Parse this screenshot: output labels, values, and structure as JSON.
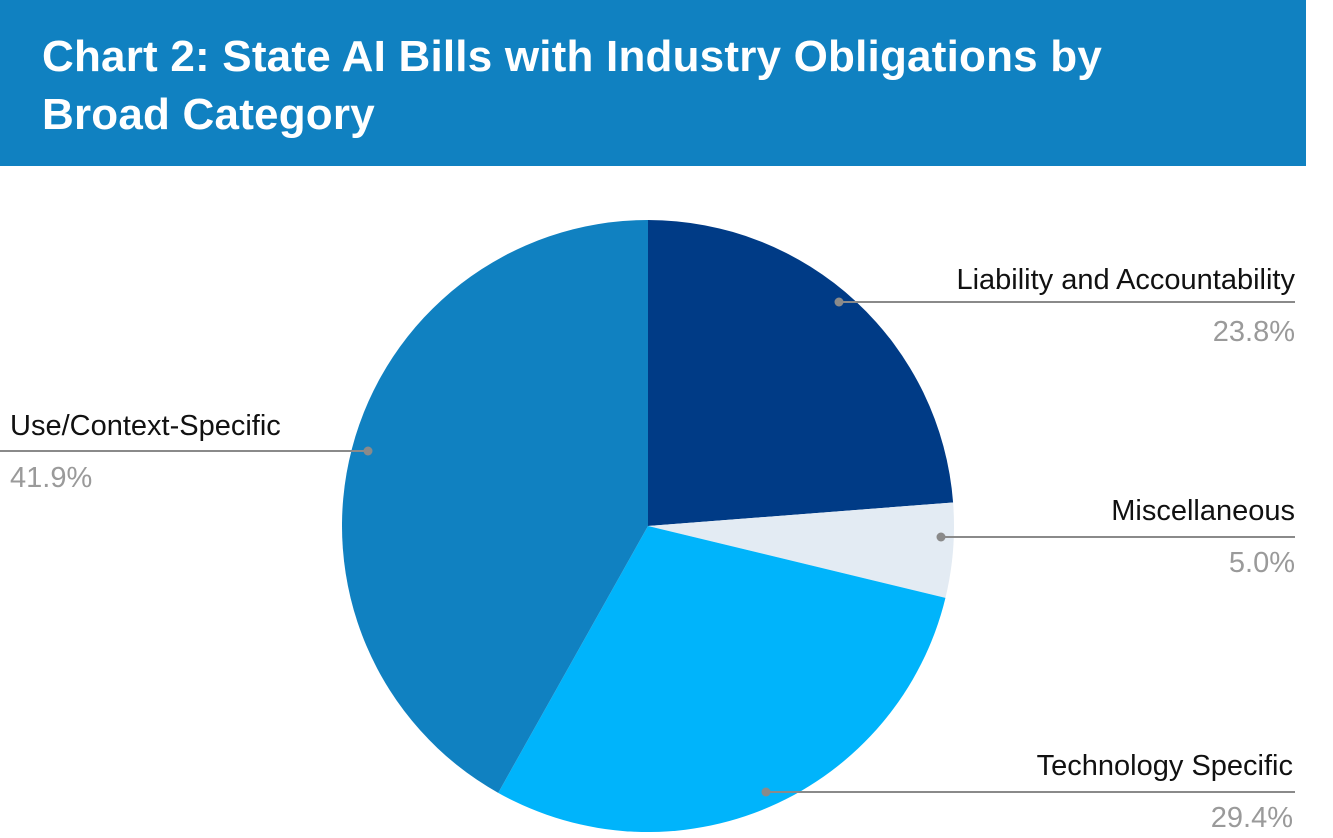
{
  "header": {
    "title": "Chart 2: State AI Bills with Industry Obligations by Broad Category"
  },
  "colors": {
    "header_bg": "#1081c1",
    "liability": "#003b86",
    "misc": "#e3ebf3",
    "technology": "#00b4fb",
    "use_context": "#1081c1",
    "leader_line": "#8a8a8a",
    "label_text": "#111111",
    "percent_text": "#9a9a9a"
  },
  "chart_data": {
    "type": "pie",
    "title": "Chart 2: State AI Bills with Industry Obligations by Broad Category",
    "slices": [
      {
        "label": "Liability and Accountability",
        "value": 23.8,
        "display": "23.8%"
      },
      {
        "label": "Miscellaneous",
        "value": 5.0,
        "display": "5.0%"
      },
      {
        "label": "Technology Specific",
        "value": 29.4,
        "display": "29.4%"
      },
      {
        "label": "Use/Context-Specific",
        "value": 41.9,
        "display": "41.9%"
      }
    ],
    "start": "12 o'clock",
    "direction": "clockwise",
    "legend": "none (direct labels with leader lines)"
  }
}
